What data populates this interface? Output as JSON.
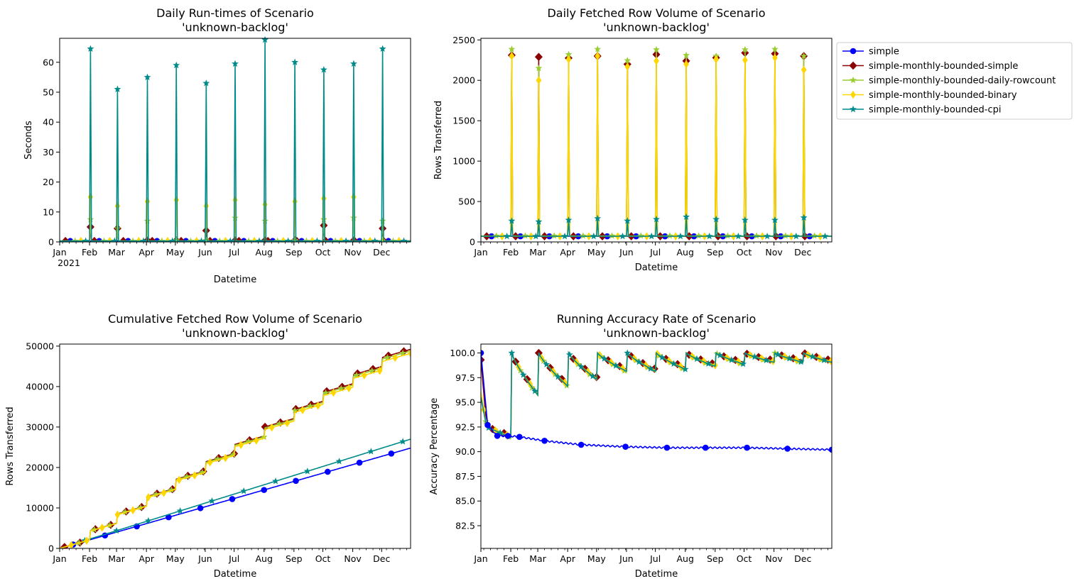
{
  "legend": {
    "placement": "upper-right-outside",
    "entries": [
      {
        "name": "simple",
        "color": "#0000ff",
        "marker": "circle"
      },
      {
        "name": "simple-monthly-bounded-simple",
        "color": "#8b0000",
        "marker": "diamond"
      },
      {
        "name": "simple-monthly-bounded-daily-rowcount",
        "color": "#9acd32",
        "marker": "star"
      },
      {
        "name": "simple-monthly-bounded-binary",
        "color": "#ffd700",
        "marker": "thin-diamond"
      },
      {
        "name": "simple-monthly-bounded-cpi",
        "color": "#008b8b",
        "marker": "star"
      }
    ]
  },
  "chart_data": [
    {
      "id": "runtimes",
      "type": "line",
      "title": "Daily Run-times of Scenario\n'unknown-backlog'",
      "xlabel": "Datetime",
      "ylabel": "Seconds",
      "year_label": "2021",
      "ylim": [
        0,
        68
      ],
      "yticks": [
        0,
        10,
        20,
        30,
        40,
        50,
        60
      ],
      "month_ticks": [
        "Jan",
        "Feb",
        "Mar",
        "Apr",
        "May",
        "Jun",
        "Jul",
        "Aug",
        "Sep",
        "Oct",
        "Nov",
        "Dec"
      ],
      "baseline": {
        "simple": 0.3,
        "simple-monthly-bounded-simple": 0.3,
        "simple-monthly-bounded-daily-rowcount": 0.3,
        "simple-monthly-bounded-binary": 0.3,
        "simple-monthly-bounded-cpi": 0.3
      },
      "spike_days": [
        32,
        60,
        91,
        121,
        152,
        182,
        213,
        244,
        274,
        305,
        335
      ],
      "spikes": {
        "simple-monthly-bounded-simple": [
          5.0,
          4.5,
          0.5,
          0.5,
          3.8,
          0.5,
          0.5,
          0.5,
          5.5,
          0.5,
          4.5
        ],
        "simple-monthly-bounded-daily-rowcount": [
          7.5,
          4.5,
          7.0,
          0.5,
          0.5,
          8.0,
          7.0,
          0.5,
          7.5,
          8.0,
          7.0
        ],
        "simple-monthly-bounded-binary": [
          15.0,
          12.0,
          13.5,
          14.0,
          12.0,
          14.0,
          12.5,
          13.5,
          14.5,
          15.0,
          0.5
        ],
        "simple-monthly-bounded-cpi": [
          64.5,
          51.0,
          55.0,
          59.0,
          53.0,
          59.5,
          67.5,
          60.0,
          57.5,
          59.5,
          64.5
        ]
      }
    },
    {
      "id": "rowvolume",
      "type": "line",
      "title": "Daily Fetched Row Volume of Scenario\n'unknown-backlog'",
      "xlabel": "Datetime",
      "ylabel": "Rows Transferred",
      "ylim": [
        0,
        2520
      ],
      "yticks": [
        0,
        500,
        1000,
        1500,
        2000,
        2500
      ],
      "month_ticks": [
        "Jan",
        "Feb",
        "Mar",
        "Apr",
        "May",
        "Jun",
        "Jul",
        "Aug",
        "Sep",
        "Oct",
        "Nov",
        "Dec"
      ],
      "baseline": {
        "simple": 70,
        "simple-monthly-bounded-simple": 70,
        "simple-monthly-bounded-daily-rowcount": 75,
        "simple-monthly-bounded-binary": 70,
        "simple-monthly-bounded-cpi": 70
      },
      "spike_days": [
        32,
        60,
        91,
        121,
        152,
        182,
        213,
        244,
        274,
        305,
        335
      ],
      "spikes": {
        "simple-monthly-bounded-simple": [
          2310,
          2290,
          2275,
          2300,
          2200,
          2320,
          2240,
          2280,
          2340,
          2330,
          2300
        ],
        "simple-monthly-bounded-daily-rowcount": [
          2385,
          2150,
          2320,
          2385,
          2245,
          2380,
          2310,
          2300,
          2380,
          2385,
          2300
        ],
        "simple-monthly-bounded-binary": [
          2300,
          2000,
          2260,
          2300,
          2170,
          2240,
          2200,
          2260,
          2250,
          2280,
          2130
        ],
        "simple-monthly-bounded-cpi": [
          260,
          250,
          270,
          290,
          260,
          280,
          310,
          280,
          270,
          270,
          300
        ]
      }
    },
    {
      "id": "cumulative",
      "type": "line",
      "title": "Cumulative Fetched Row Volume of Scenario\n'unknown-backlog'",
      "xlabel": "Datetime",
      "ylabel": "Rows Transferred",
      "ylim": [
        0,
        50500
      ],
      "yticks": [
        0,
        10000,
        20000,
        30000,
        40000,
        50000
      ],
      "month_ticks": [
        "Jan",
        "Feb",
        "Mar",
        "Apr",
        "May",
        "Jun",
        "Jul",
        "Aug",
        "Sep",
        "Oct",
        "Nov",
        "Dec"
      ],
      "final_values": {
        "simple": 24800,
        "simple-monthly-bounded-simple": 49200,
        "simple-monthly-bounded-daily-rowcount": 48800,
        "simple-monthly-bounded-binary": 48200,
        "simple-monthly-bounded-cpi": 27000
      }
    },
    {
      "id": "accuracy",
      "type": "line",
      "title": "Running Accuracy Rate of Scenario\n'unknown-backlog'",
      "xlabel": "Datetime",
      "ylabel": "Accuracy Percentage",
      "ylim": [
        80.2,
        100.9
      ],
      "yticks": [
        82.5,
        85.0,
        87.5,
        90.0,
        92.5,
        95.0,
        97.5,
        100.0
      ],
      "ytick_labels": [
        "82.5",
        "85.0",
        "87.5",
        "90.0",
        "92.5",
        "95.0",
        "97.5",
        "100.0"
      ],
      "month_ticks": [
        "Jan",
        "Feb",
        "Mar",
        "Apr",
        "May",
        "Jun",
        "Jul",
        "Aug",
        "Sep",
        "Oct",
        "Nov",
        "Dec"
      ],
      "simple_points": [
        [
          0,
          100.0
        ],
        [
          7,
          92.7
        ],
        [
          17,
          91.6
        ],
        [
          28,
          91.6
        ],
        [
          40,
          91.5
        ],
        [
          66,
          91.1
        ],
        [
          104,
          90.7
        ],
        [
          150,
          90.5
        ],
        [
          193,
          90.4
        ],
        [
          233,
          90.4
        ],
        [
          276,
          90.4
        ],
        [
          318,
          90.3
        ],
        [
          364,
          90.2
        ]
      ],
      "bounded_minima": [
        91.5,
        95.8,
        96.7,
        97.4,
        98.2,
        98.2,
        98.4,
        98.7,
        98.9,
        99.1,
        99.1,
        99.1
      ],
      "start_values": {
        "simple-monthly-bounded-simple": 99.3,
        "simple-monthly-bounded-binary": 96.0,
        "simple-monthly-bounded-cpi": 95.5
      }
    }
  ]
}
